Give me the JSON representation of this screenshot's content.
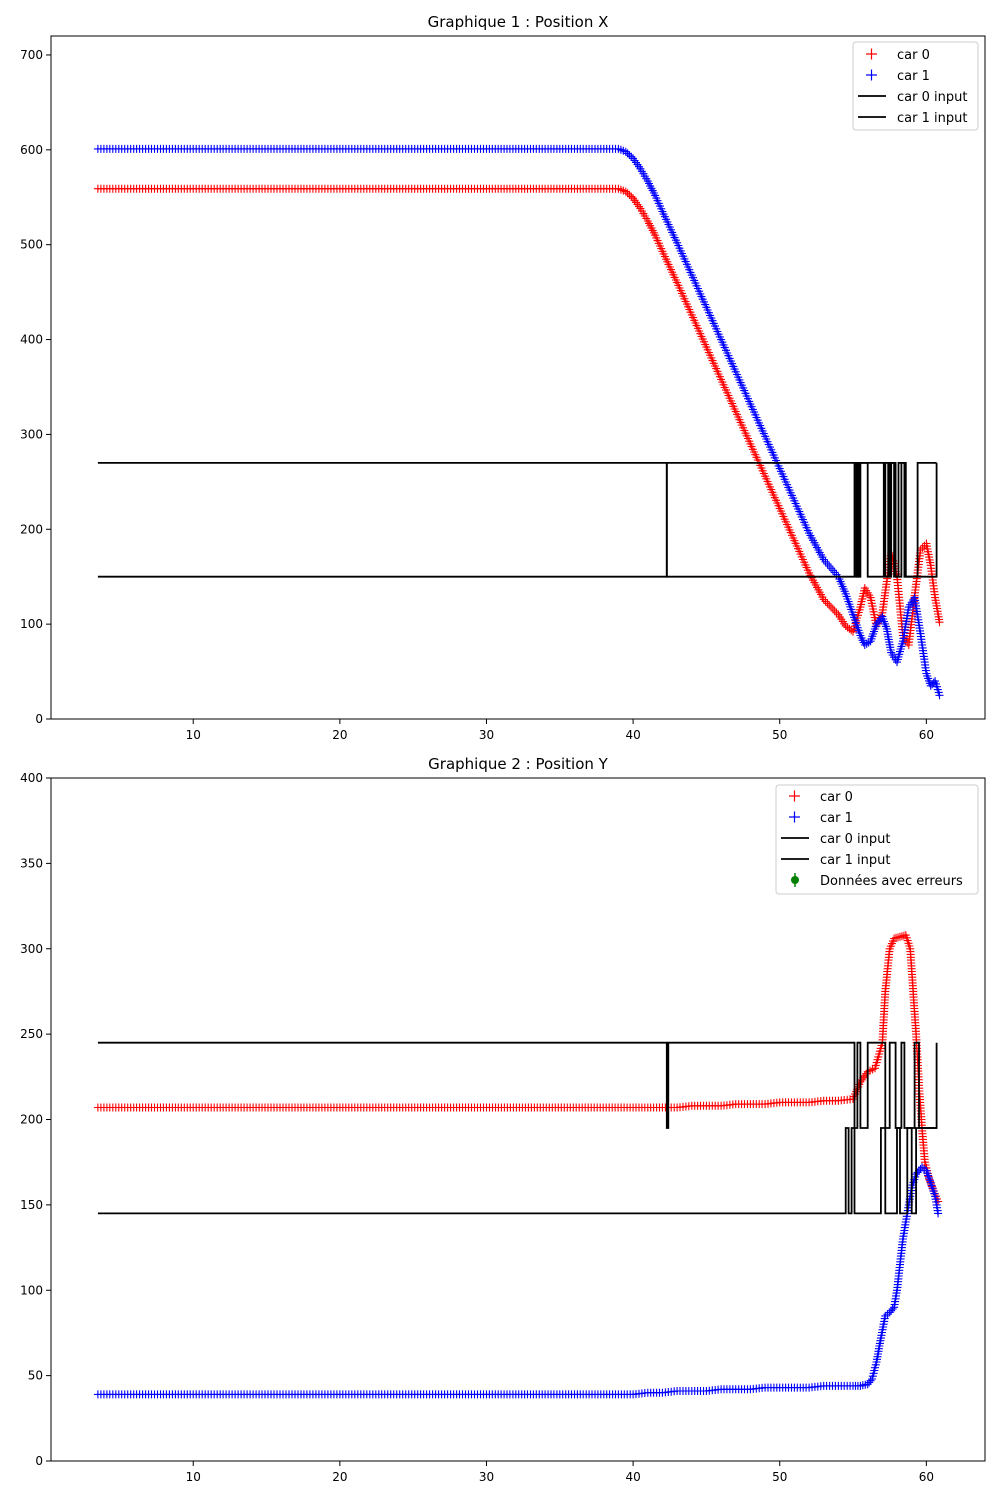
{
  "chart_data": [
    {
      "type": "scatter",
      "title": "Graphique 1 : Position X",
      "xlabel": "",
      "ylabel": "",
      "xlim": [
        0.3,
        64.0
      ],
      "ylim": [
        0,
        720
      ],
      "xticks": [
        10,
        20,
        30,
        40,
        50,
        60
      ],
      "yticks": [
        0,
        100,
        200,
        300,
        400,
        500,
        600,
        700
      ],
      "grid": false,
      "legend_position": "top-right",
      "legend": [
        "car 0",
        "car 1",
        "car 0 input",
        "car 1 input"
      ],
      "series": [
        {
          "name": "car 0",
          "kind": "points",
          "marker": "+",
          "color": "#ff0000",
          "x": [
            3.5,
            10,
            20,
            30,
            36,
            38,
            39,
            39.5,
            40,
            40.5,
            41,
            41.5,
            42,
            43,
            44,
            45,
            46,
            47,
            48,
            49,
            50,
            51,
            52,
            53,
            54,
            54.5,
            55,
            55.5,
            55.8,
            56.2,
            56.6,
            57.0,
            57.3,
            57.6,
            58.0,
            58.4,
            58.8,
            59.2,
            59.6,
            60.0,
            60.3,
            60.6,
            60.9
          ],
          "y": [
            559,
            559,
            559,
            559,
            559,
            559,
            559,
            556,
            549,
            538,
            525,
            510,
            493,
            460,
            426,
            392,
            358,
            324,
            290,
            256,
            222,
            188,
            154,
            126,
            110,
            98,
            92,
            118,
            138,
            128,
            98,
            112,
            145,
            175,
            150,
            88,
            78,
            130,
            178,
            185,
            162,
            128,
            102
          ]
        },
        {
          "name": "car 1",
          "kind": "points",
          "marker": "+",
          "color": "#0000ff",
          "x": [
            3.5,
            10,
            20,
            30,
            36,
            38,
            39,
            39.5,
            40,
            40.5,
            41,
            41.5,
            42,
            43,
            44,
            45,
            46,
            47,
            48,
            49,
            50,
            51,
            52,
            53,
            54,
            54.5,
            55,
            55.5,
            55.8,
            56.2,
            56.6,
            57.0,
            57.3,
            57.6,
            58.0,
            58.4,
            58.8,
            59.2,
            59.6,
            60.0,
            60.3,
            60.6,
            60.9
          ],
          "y": [
            601,
            601,
            601,
            601,
            601,
            601,
            601,
            598,
            591,
            580,
            567,
            552,
            535,
            502,
            468,
            434,
            400,
            366,
            332,
            298,
            264,
            230,
            196,
            168,
            150,
            132,
            110,
            88,
            78,
            82,
            100,
            108,
            95,
            70,
            60,
            82,
            118,
            128,
            90,
            48,
            35,
            40,
            25
          ]
        },
        {
          "name": "car 0 input",
          "kind": "step",
          "color": "#000000",
          "x": [
            3.5,
            42.3,
            42.3,
            55.1,
            55.1,
            55.3,
            55.3,
            55.5,
            55.5,
            56.0,
            56.0,
            57.1,
            57.1,
            57.4,
            57.4,
            57.6,
            57.6,
            57.9,
            57.9,
            58.3,
            58.3,
            58.5,
            58.5,
            59.4,
            59.4,
            60.7
          ],
          "y": [
            270,
            270,
            150,
            150,
            270,
            270,
            150,
            150,
            270,
            270,
            150,
            150,
            270,
            270,
            150,
            150,
            270,
            270,
            150,
            150,
            270,
            270,
            150,
            150,
            270,
            270
          ]
        },
        {
          "name": "car 1 input",
          "kind": "step",
          "color": "#000000",
          "x": [
            3.5,
            42.3,
            42.3,
            55.2,
            55.2,
            55.4,
            55.4,
            57.2,
            57.2,
            57.5,
            57.5,
            57.8,
            57.8,
            58.1,
            58.1,
            58.6,
            58.6,
            60.7,
            60.7
          ],
          "y": [
            150,
            150,
            270,
            270,
            150,
            150,
            270,
            270,
            150,
            150,
            270,
            270,
            150,
            150,
            270,
            270,
            150,
            150,
            270
          ]
        }
      ]
    },
    {
      "type": "scatter",
      "title": "Graphique 2 : Position Y",
      "xlabel": "",
      "ylabel": "",
      "xlim": [
        0.3,
        64.0
      ],
      "ylim": [
        0,
        400
      ],
      "xticks": [
        10,
        20,
        30,
        40,
        50,
        60
      ],
      "yticks": [
        0,
        50,
        100,
        150,
        200,
        250,
        300,
        350,
        400
      ],
      "grid": false,
      "legend_position": "top-right",
      "legend": [
        "car 0",
        "car 1",
        "car 0 input",
        "car 1 input",
        "Données avec erreurs"
      ],
      "series": [
        {
          "name": "car 0",
          "kind": "points",
          "marker": "+",
          "color": "#ff0000",
          "x": [
            3.5,
            10,
            20,
            30,
            40,
            42,
            43,
            44,
            45,
            46,
            47,
            48,
            49,
            50,
            51,
            52,
            53,
            54,
            55,
            55.5,
            56,
            56.5,
            57.0,
            57.2,
            57.5,
            57.8,
            58.2,
            58.6,
            58.9,
            59.1,
            59.3,
            59.5,
            59.7,
            59.9,
            60.2,
            60.5,
            60.8
          ],
          "y": [
            207,
            207,
            207,
            207,
            207,
            207,
            207,
            208,
            208,
            208,
            209,
            209,
            209,
            210,
            210,
            210,
            211,
            211,
            212,
            222,
            228,
            230,
            245,
            275,
            300,
            306,
            307,
            308,
            300,
            275,
            250,
            220,
            195,
            175,
            165,
            158,
            152
          ]
        },
        {
          "name": "car 1",
          "kind": "points",
          "marker": "+",
          "color": "#0000ff",
          "x": [
            3.5,
            10,
            20,
            30,
            38,
            40,
            41,
            42,
            43,
            44,
            45,
            46,
            47,
            48,
            49,
            50,
            51,
            52,
            53,
            54,
            55,
            55.5,
            56,
            56.3,
            56.6,
            56.9,
            57.2,
            57.5,
            57.8,
            58.0,
            58.2,
            58.4,
            58.6,
            58.8,
            59.0,
            59.3,
            59.7,
            60.0,
            60.3,
            60.6,
            60.8
          ],
          "y": [
            39,
            39,
            39,
            39,
            39,
            39,
            40,
            40,
            41,
            41,
            41,
            42,
            42,
            42,
            43,
            43,
            43,
            43,
            44,
            44,
            44,
            44,
            45,
            48,
            58,
            72,
            85,
            87,
            90,
            100,
            115,
            130,
            140,
            150,
            160,
            168,
            172,
            170,
            163,
            155,
            145
          ]
        },
        {
          "name": "car 0 input",
          "kind": "step",
          "color": "#000000",
          "x": [
            3.5,
            42.3,
            42.3,
            42.4,
            42.4,
            55.1,
            55.1,
            55.3,
            55.3,
            55.5,
            55.5,
            56.0,
            56.0,
            57.2,
            57.2,
            57.5,
            57.5,
            57.9,
            57.9,
            58.3,
            58.3,
            58.5,
            58.5,
            59.2,
            59.2,
            59.5,
            59.5,
            60.7,
            60.7
          ],
          "y": [
            245,
            245,
            195,
            195,
            245,
            245,
            195,
            195,
            245,
            245,
            195,
            195,
            245,
            245,
            195,
            195,
            245,
            245,
            195,
            195,
            245,
            245,
            195,
            195,
            245,
            245,
            195,
            195,
            245
          ]
        },
        {
          "name": "car 1 input",
          "kind": "step",
          "color": "#000000",
          "x": [
            3.5,
            54.5,
            54.5,
            54.7,
            54.7,
            54.9,
            54.9,
            55.1,
            55.1,
            56.9,
            56.9,
            57.2,
            57.2,
            58.0,
            58.0,
            58.2,
            58.2,
            58.7,
            58.7,
            59.0,
            59.0,
            59.3,
            59.3,
            60.7
          ],
          "y": [
            145,
            145,
            195,
            195,
            145,
            145,
            195,
            195,
            145,
            145,
            195,
            195,
            145,
            145,
            195,
            195,
            145,
            145,
            195,
            195,
            145,
            145,
            195,
            195
          ]
        },
        {
          "name": "Données avec erreurs",
          "kind": "errorbar",
          "marker": "o",
          "color": "#008000",
          "x": [],
          "y": []
        }
      ]
    }
  ]
}
